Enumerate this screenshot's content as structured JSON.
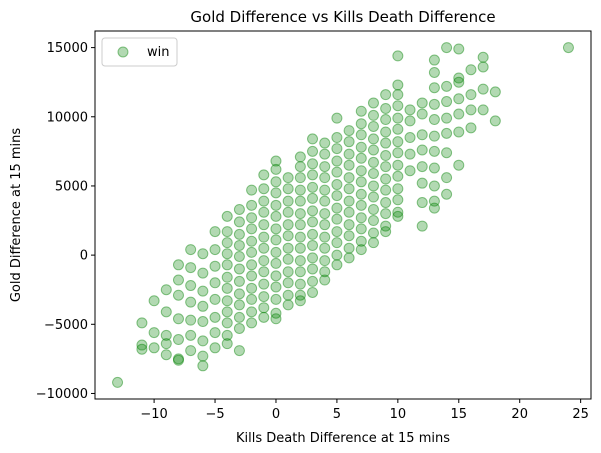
{
  "chart_data": {
    "type": "scatter",
    "title": "Gold Difference vs Kills Death Difference",
    "xlabel": "Kills Death Difference at 15 mins",
    "ylabel": "Gold Difference at 15 mins",
    "xlim": [
      -14.85,
      25.85
    ],
    "ylim": [
      -10400,
      16200
    ],
    "xticks": [
      -10,
      -5,
      0,
      5,
      10,
      15,
      20,
      25
    ],
    "xtick_labels": [
      "−10",
      "−5",
      "0",
      "5",
      "10",
      "15",
      "20",
      "25"
    ],
    "yticks": [
      -10000,
      -5000,
      0,
      5000,
      10000,
      15000
    ],
    "ytick_labels": [
      "−10000",
      "−5000",
      "0",
      "5000",
      "10000",
      "15000"
    ],
    "grid": false,
    "legend": {
      "position": "top-left",
      "entries": [
        "win"
      ]
    },
    "series": [
      {
        "name": "win",
        "color": "#008000",
        "alpha": 0.3,
        "points": [
          [
            -13,
            -9200
          ],
          [
            -11,
            -4900
          ],
          [
            -11,
            -6500
          ],
          [
            -11,
            -6800
          ],
          [
            -10,
            -3300
          ],
          [
            -10,
            -5600
          ],
          [
            -10,
            -6700
          ],
          [
            -9,
            -2500
          ],
          [
            -9,
            -4100
          ],
          [
            -9,
            -5800
          ],
          [
            -9,
            -6400
          ],
          [
            -9,
            -7200
          ],
          [
            -8,
            -700
          ],
          [
            -8,
            -1800
          ],
          [
            -8,
            -2900
          ],
          [
            -8,
            -4600
          ],
          [
            -8,
            -6100
          ],
          [
            -8,
            -7500
          ],
          [
            -8,
            -7600
          ],
          [
            -7,
            400
          ],
          [
            -7,
            -900
          ],
          [
            -7,
            -2200
          ],
          [
            -7,
            -3400
          ],
          [
            -7,
            -4700
          ],
          [
            -7,
            -5800
          ],
          [
            -7,
            -6900
          ],
          [
            -6,
            100
          ],
          [
            -6,
            -1300
          ],
          [
            -6,
            -2600
          ],
          [
            -6,
            -3700
          ],
          [
            -6,
            -4800
          ],
          [
            -6,
            -6200
          ],
          [
            -6,
            -7300
          ],
          [
            -6,
            -8000
          ],
          [
            -5,
            1700
          ],
          [
            -5,
            400
          ],
          [
            -5,
            -800
          ],
          [
            -5,
            -2000
          ],
          [
            -5,
            -3200
          ],
          [
            -5,
            -4500
          ],
          [
            -5,
            -5600
          ],
          [
            -5,
            -6700
          ],
          [
            -4,
            2800
          ],
          [
            -4,
            1700
          ],
          [
            -4,
            900
          ],
          [
            -4,
            100
          ],
          [
            -4,
            -700
          ],
          [
            -4,
            -1600
          ],
          [
            -4,
            -2400
          ],
          [
            -4,
            -3300
          ],
          [
            -4,
            -4100
          ],
          [
            -4,
            -4900
          ],
          [
            -4,
            -5800
          ],
          [
            -4,
            -6400
          ],
          [
            -3,
            3300
          ],
          [
            -3,
            2400
          ],
          [
            -3,
            1500
          ],
          [
            -3,
            700
          ],
          [
            -3,
            -100
          ],
          [
            -3,
            -1000
          ],
          [
            -3,
            -1900
          ],
          [
            -3,
            -2800
          ],
          [
            -3,
            -3600
          ],
          [
            -3,
            -4500
          ],
          [
            -3,
            -5300
          ],
          [
            -3,
            -6900
          ],
          [
            -2,
            4700
          ],
          [
            -2,
            3600
          ],
          [
            -2,
            2700
          ],
          [
            -2,
            1900
          ],
          [
            -2,
            1000
          ],
          [
            -2,
            200
          ],
          [
            -2,
            -700
          ],
          [
            -2,
            -1500
          ],
          [
            -2,
            -2400
          ],
          [
            -2,
            -3200
          ],
          [
            -2,
            -4100
          ],
          [
            -2,
            -4900
          ],
          [
            -1,
            5800
          ],
          [
            -1,
            4800
          ],
          [
            -1,
            3900
          ],
          [
            -1,
            3100
          ],
          [
            -1,
            2200
          ],
          [
            -1,
            1300
          ],
          [
            -1,
            500
          ],
          [
            -1,
            -400
          ],
          [
            -1,
            -1200
          ],
          [
            -1,
            -2100
          ],
          [
            -1,
            -3000
          ],
          [
            -1,
            -3800
          ],
          [
            -1,
            -4500
          ],
          [
            0,
            6800
          ],
          [
            0,
            6200
          ],
          [
            0,
            5300
          ],
          [
            0,
            4500
          ],
          [
            0,
            3600
          ],
          [
            0,
            2800
          ],
          [
            0,
            1900
          ],
          [
            0,
            1100
          ],
          [
            0,
            200
          ],
          [
            0,
            -600
          ],
          [
            0,
            -1500
          ],
          [
            0,
            -2300
          ],
          [
            0,
            -3200
          ],
          [
            0,
            -4200
          ],
          [
            0,
            -4600
          ],
          [
            1,
            5600
          ],
          [
            1,
            4800
          ],
          [
            1,
            3900
          ],
          [
            1,
            3100
          ],
          [
            1,
            2200
          ],
          [
            1,
            1400
          ],
          [
            1,
            500
          ],
          [
            1,
            -300
          ],
          [
            1,
            -1200
          ],
          [
            1,
            -2000
          ],
          [
            1,
            -2900
          ],
          [
            1,
            -3600
          ],
          [
            2,
            7100
          ],
          [
            2,
            6400
          ],
          [
            2,
            5600
          ],
          [
            2,
            4700
          ],
          [
            2,
            3900
          ],
          [
            2,
            3000
          ],
          [
            2,
            2200
          ],
          [
            2,
            1300
          ],
          [
            2,
            500
          ],
          [
            2,
            -400
          ],
          [
            2,
            -1200
          ],
          [
            2,
            -2100
          ],
          [
            2,
            -2900
          ],
          [
            2,
            -3300
          ],
          [
            3,
            8400
          ],
          [
            3,
            7500
          ],
          [
            3,
            6600
          ],
          [
            3,
            5800
          ],
          [
            3,
            4900
          ],
          [
            3,
            4100
          ],
          [
            3,
            3200
          ],
          [
            3,
            2400
          ],
          [
            3,
            1500
          ],
          [
            3,
            700
          ],
          [
            3,
            -200
          ],
          [
            3,
            -1000
          ],
          [
            3,
            -1900
          ],
          [
            3,
            -2700
          ],
          [
            4,
            8100
          ],
          [
            4,
            7300
          ],
          [
            4,
            6400
          ],
          [
            4,
            5600
          ],
          [
            4,
            4700
          ],
          [
            4,
            3900
          ],
          [
            4,
            3000
          ],
          [
            4,
            2200
          ],
          [
            4,
            1300
          ],
          [
            4,
            500
          ],
          [
            4,
            -400
          ],
          [
            4,
            -1200
          ],
          [
            4,
            -1800
          ],
          [
            5,
            9900
          ],
          [
            5,
            8500
          ],
          [
            5,
            7700
          ],
          [
            5,
            6800
          ],
          [
            5,
            6000
          ],
          [
            5,
            5100
          ],
          [
            5,
            4300
          ],
          [
            5,
            3400
          ],
          [
            5,
            2600
          ],
          [
            5,
            1700
          ],
          [
            5,
            900
          ],
          [
            5,
            0
          ],
          [
            5,
            -700
          ],
          [
            6,
            9000
          ],
          [
            6,
            8200
          ],
          [
            6,
            7300
          ],
          [
            6,
            6500
          ],
          [
            6,
            5600
          ],
          [
            6,
            4800
          ],
          [
            6,
            3900
          ],
          [
            6,
            3100
          ],
          [
            6,
            2200
          ],
          [
            6,
            1400
          ],
          [
            6,
            500
          ],
          [
            6,
            -200
          ],
          [
            7,
            10400
          ],
          [
            7,
            9500
          ],
          [
            7,
            8700
          ],
          [
            7,
            7800
          ],
          [
            7,
            7000
          ],
          [
            7,
            6100
          ],
          [
            7,
            5300
          ],
          [
            7,
            4400
          ],
          [
            7,
            3600
          ],
          [
            7,
            2700
          ],
          [
            7,
            1900
          ],
          [
            7,
            1000
          ],
          [
            7,
            400
          ],
          [
            8,
            11000
          ],
          [
            8,
            10100
          ],
          [
            8,
            9300
          ],
          [
            8,
            8400
          ],
          [
            8,
            7600
          ],
          [
            8,
            6700
          ],
          [
            8,
            5900
          ],
          [
            8,
            5000
          ],
          [
            8,
            4200
          ],
          [
            8,
            3300
          ],
          [
            8,
            2500
          ],
          [
            8,
            1600
          ],
          [
            8,
            900
          ],
          [
            9,
            11600
          ],
          [
            9,
            10600
          ],
          [
            9,
            9800
          ],
          [
            9,
            8900
          ],
          [
            9,
            8100
          ],
          [
            9,
            7200
          ],
          [
            9,
            6400
          ],
          [
            9,
            5500
          ],
          [
            9,
            4700
          ],
          [
            9,
            3800
          ],
          [
            9,
            3000
          ],
          [
            9,
            2100
          ],
          [
            9,
            1700
          ],
          [
            10,
            14400
          ],
          [
            10,
            12300
          ],
          [
            10,
            11600
          ],
          [
            10,
            10800
          ],
          [
            10,
            9900
          ],
          [
            10,
            9100
          ],
          [
            10,
            8200
          ],
          [
            10,
            7400
          ],
          [
            10,
            6500
          ],
          [
            10,
            5700
          ],
          [
            10,
            4800
          ],
          [
            10,
            4000
          ],
          [
            10,
            3100
          ],
          [
            10,
            2800
          ],
          [
            11,
            10500
          ],
          [
            11,
            9700
          ],
          [
            11,
            8500
          ],
          [
            11,
            7300
          ],
          [
            11,
            6100
          ],
          [
            12,
            11000
          ],
          [
            12,
            10200
          ],
          [
            12,
            8700
          ],
          [
            12,
            7600
          ],
          [
            12,
            6400
          ],
          [
            12,
            5200
          ],
          [
            12,
            3800
          ],
          [
            12,
            2100
          ],
          [
            13,
            14100
          ],
          [
            13,
            13200
          ],
          [
            13,
            12100
          ],
          [
            13,
            10900
          ],
          [
            13,
            9800
          ],
          [
            13,
            8600
          ],
          [
            13,
            7500
          ],
          [
            13,
            6300
          ],
          [
            13,
            5000
          ],
          [
            13,
            3900
          ],
          [
            13,
            3400
          ],
          [
            14,
            15000
          ],
          [
            14,
            12200
          ],
          [
            14,
            11100
          ],
          [
            14,
            9900
          ],
          [
            14,
            8800
          ],
          [
            14,
            7400
          ],
          [
            14,
            5600
          ],
          [
            14,
            4400
          ],
          [
            15,
            14900
          ],
          [
            15,
            12800
          ],
          [
            15,
            12500
          ],
          [
            15,
            11300
          ],
          [
            15,
            10200
          ],
          [
            15,
            8900
          ],
          [
            15,
            6500
          ],
          [
            16,
            13400
          ],
          [
            16,
            11600
          ],
          [
            16,
            10500
          ],
          [
            16,
            9200
          ],
          [
            17,
            14300
          ],
          [
            17,
            13600
          ],
          [
            17,
            12000
          ],
          [
            17,
            10500
          ],
          [
            18,
            11800
          ],
          [
            18,
            9700
          ],
          [
            24,
            15000
          ]
        ]
      }
    ]
  }
}
